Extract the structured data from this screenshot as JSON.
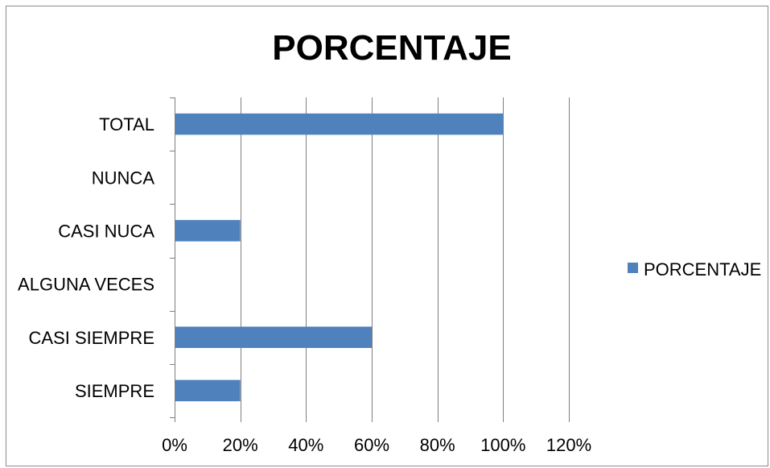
{
  "chart_data": {
    "type": "bar",
    "orientation": "horizontal",
    "title": "PORCENTAJE",
    "categories": [
      "SIEMPRE",
      "CASI SIEMPRE",
      "ALGUNA VECES",
      "CASI NUCA",
      "NUNCA",
      "TOTAL"
    ],
    "series": [
      {
        "name": "PORCENTAJE",
        "values": [
          0.2,
          0.6,
          0,
          0.2,
          0,
          1.0
        ]
      }
    ],
    "xlim": [
      0,
      1.2
    ],
    "x_ticks": [
      0,
      0.2,
      0.4,
      0.6,
      0.8,
      1.0,
      1.2
    ],
    "x_tick_labels": [
      "0%",
      "20%",
      "40%",
      "60%",
      "80%",
      "100%",
      "120%"
    ],
    "xlabel": "",
    "ylabel": "",
    "grid": "vertical",
    "legend_position": "right",
    "colors": {
      "bar": "#4f81bd",
      "grid": "#7f7f7f",
      "axis": "#7f7f7f"
    }
  }
}
